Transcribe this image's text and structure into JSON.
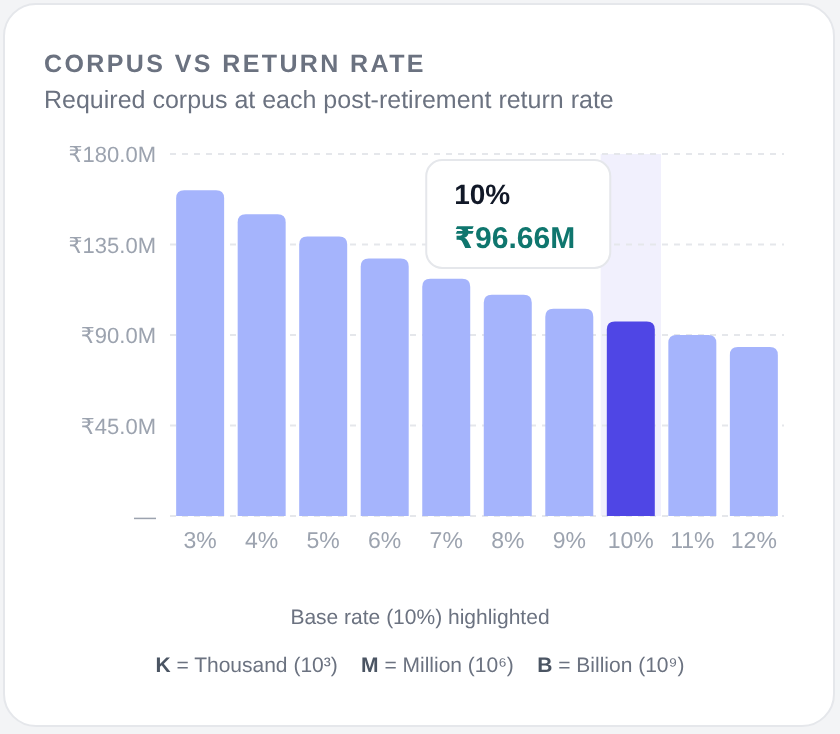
{
  "chart_data": {
    "type": "bar",
    "title": "CORPUS VS RETURN RATE",
    "subtitle": "Required corpus at each post-retirement return rate",
    "categories": [
      "3%",
      "4%",
      "5%",
      "6%",
      "7%",
      "8%",
      "9%",
      "10%",
      "11%",
      "12%"
    ],
    "values": [
      162,
      150,
      139,
      128,
      118,
      110,
      103,
      96.66,
      90,
      84
    ],
    "colors": [
      "#a5b4fc",
      "#a5b4fc",
      "#a5b4fc",
      "#a5b4fc",
      "#a5b4fc",
      "#a5b4fc",
      "#a5b4fc",
      "#4f46e5",
      "#a5b4fc",
      "#a5b4fc"
    ],
    "ylim": [
      0,
      180
    ],
    "yticks": [
      {
        "value": 0,
        "label": "—"
      },
      {
        "value": 45,
        "label": "₹45.0M"
      },
      {
        "value": 90,
        "label": "₹90.0M"
      },
      {
        "value": 135,
        "label": "₹135.0M"
      },
      {
        "value": 180,
        "label": "₹180.0M"
      }
    ],
    "grid": "y",
    "bands": [
      {
        "axis": "x",
        "from": "10%",
        "to": "10%",
        "color": "#f1f0fd"
      }
    ],
    "annotations": [
      "10%",
      "₹96.66M",
      "Base rate (10%) highlighted",
      "K = Thousand (10³)",
      "M = Million (10⁶)",
      "B = Billion (10⁹)"
    ]
  }
}
